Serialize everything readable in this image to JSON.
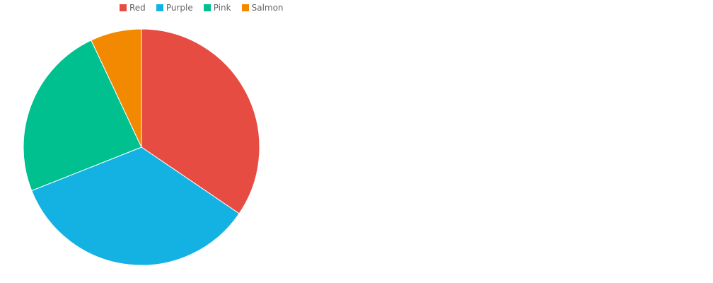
{
  "chart_data": {
    "type": "pie",
    "labels": [
      "Red",
      "Purple",
      "Pink",
      "Salmon"
    ],
    "values": [
      34.5,
      34.5,
      24.0,
      7.0
    ],
    "colors": [
      "#e74c42",
      "#14b2e3",
      "#00c08f",
      "#f28900"
    ],
    "start_angle_deg": 0,
    "direction": "clockwise",
    "legend_position": "top",
    "title": ""
  }
}
